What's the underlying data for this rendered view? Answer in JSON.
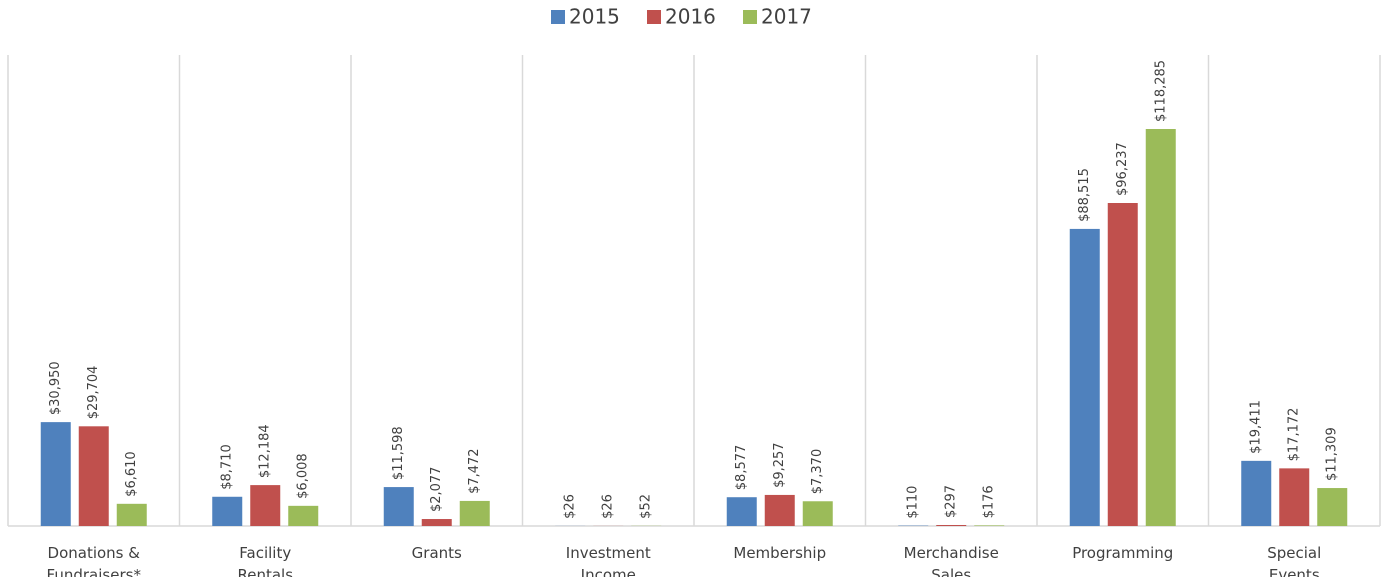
{
  "chart_data": {
    "type": "bar",
    "categories": [
      "Donations & Fundraisers*",
      "Facility Rentals",
      "Grants",
      "Investment Income",
      "Membership",
      "Merchandise Sales",
      "Programming",
      "Special Events"
    ],
    "series": [
      {
        "name": "2015",
        "color": "#4f81bd",
        "values": [
          30950,
          8710,
          11598,
          26,
          8577,
          110,
          88515,
          19411
        ],
        "value_labels": [
          "$30,950",
          "$8,710",
          "$11,598",
          "$26",
          "$8,577",
          "$110",
          "$88,515",
          "$19,411"
        ]
      },
      {
        "name": "2016",
        "color": "#c0504d",
        "values": [
          29704,
          12184,
          2077,
          26,
          9257,
          297,
          96237,
          17172
        ],
        "value_labels": [
          "$29,704",
          "$12,184",
          "$2,077",
          "$26",
          "$9,257",
          "$297",
          "$96,237",
          "$17,172"
        ]
      },
      {
        "name": "2017",
        "color": "#9bbb59",
        "values": [
          6610,
          6008,
          7472,
          52,
          7370,
          176,
          118285,
          11309
        ],
        "value_labels": [
          "$6,610",
          "$6,008",
          "$7,472",
          "$52",
          "$7,370",
          "$176",
          "$118,285",
          "$11,309"
        ]
      }
    ],
    "legend": "top",
    "grid": true
  }
}
